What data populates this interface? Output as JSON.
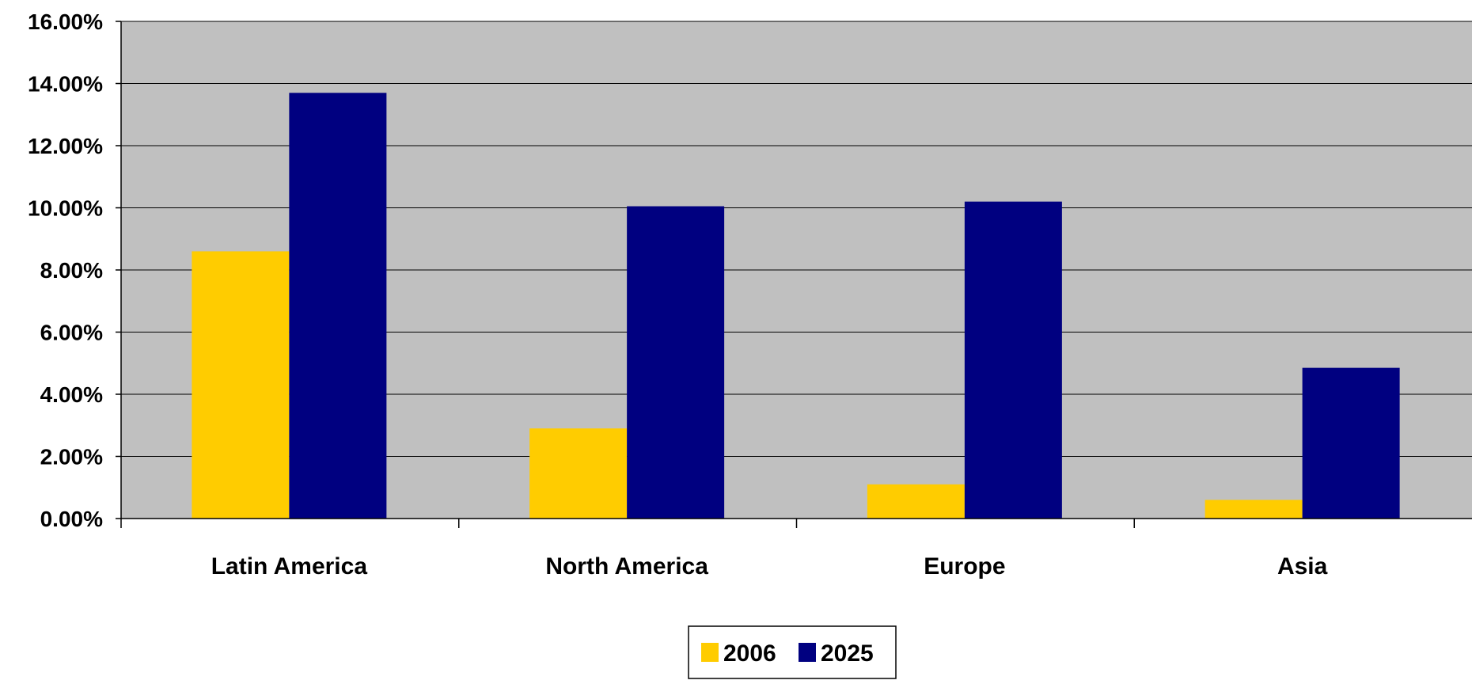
{
  "chart_data": {
    "type": "bar",
    "categories": [
      "Latin America",
      "North America",
      "Europe",
      "Asia"
    ],
    "series": [
      {
        "name": "2006",
        "values": [
          8.6,
          2.9,
          1.1,
          0.6
        ],
        "color": "#FFCC00"
      },
      {
        "name": "2025",
        "values": [
          13.7,
          10.05,
          10.2,
          4.85
        ],
        "color": "#000080"
      }
    ],
    "ylim": [
      0,
      16
    ],
    "yticks": [
      "0.00%",
      "2.00%",
      "4.00%",
      "6.00%",
      "8.00%",
      "10.00%",
      "12.00%",
      "14.00%",
      "16.00%"
    ],
    "title": "",
    "xlabel": "",
    "ylabel": "",
    "grid": true,
    "legend_position": "bottom-center",
    "plot_background": "#C0C0C0"
  }
}
